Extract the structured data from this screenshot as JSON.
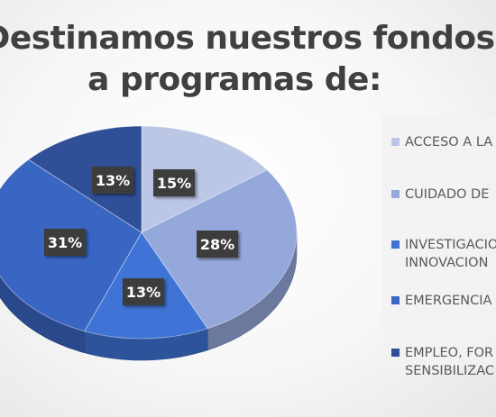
{
  "chart_data": {
    "type": "pie",
    "title_lines": [
      "Destinamos nuestros fondos",
      "a programas de:"
    ],
    "slices": [
      {
        "label": [
          "ACCESO A LA"
        ],
        "value": 15,
        "display": "15%",
        "color": "#bcc7e6"
      },
      {
        "label": [
          "CUIDADO DE"
        ],
        "value": 28,
        "display": "28%",
        "color": "#94a8db"
      },
      {
        "label": [
          "INVESTIGACIO",
          "INNOVACION"
        ],
        "value": 13,
        "display": "13%",
        "color": "#3f74d6"
      },
      {
        "label": [
          "EMERGENCIA"
        ],
        "value": 31,
        "display": "31%",
        "color": "#3a66c3"
      },
      {
        "label": [
          "EMPLEO, FOR",
          "SENSIBILIZAC"
        ],
        "value": 13,
        "display": "13%",
        "color": "#2f4f97"
      }
    ],
    "legend_position": "right",
    "style": "3d-pie"
  }
}
